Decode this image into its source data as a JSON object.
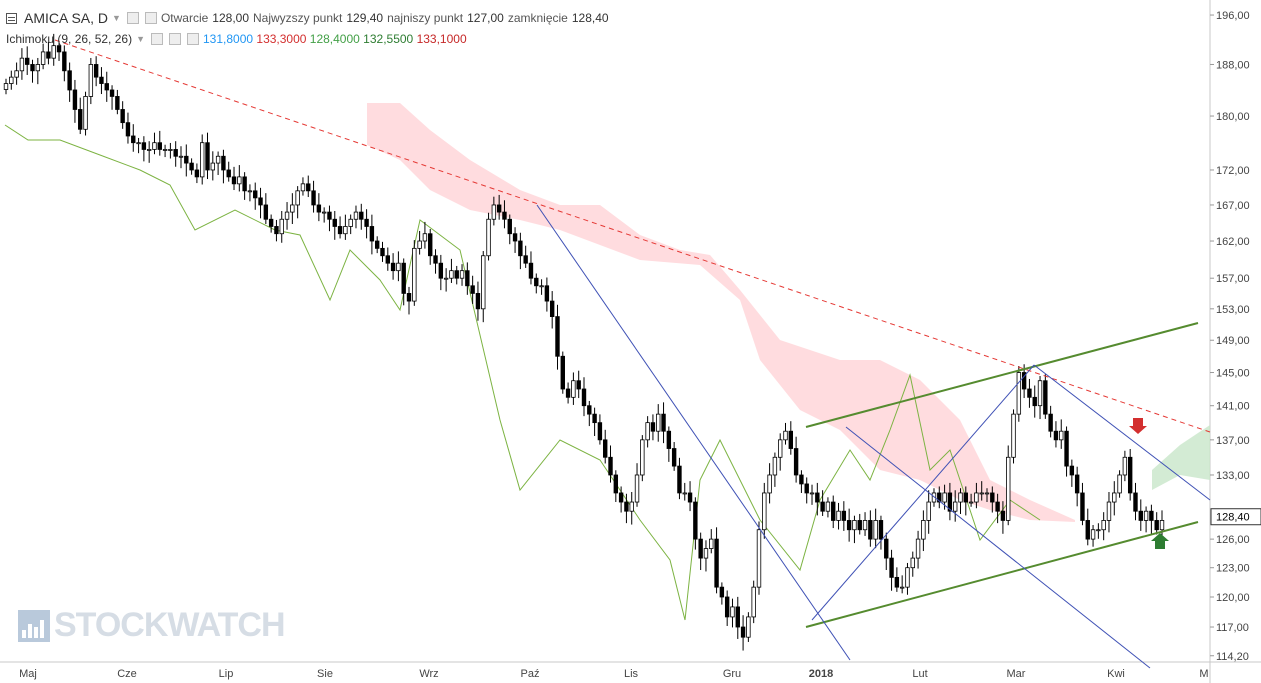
{
  "legend": {
    "symbol": "AMICA SA, D",
    "open_label": "Otwarcie",
    "open": "128,00",
    "high_label": "Najwyzszy punkt",
    "high": "129,40",
    "low_label": "najniszy punkt",
    "low": "127,00",
    "close_label": "zamknięcie",
    "close": "128,40",
    "indicator": "Ichimoku (9, 26, 52, 26)",
    "ind_values": [
      {
        "value": "131,8000",
        "color": "#2196f3"
      },
      {
        "value": "133,3000",
        "color": "#d32f2f"
      },
      {
        "value": "128,4000",
        "color": "#43a047"
      },
      {
        "value": "132,5500",
        "color": "#2e7d32"
      },
      {
        "value": "133,1000",
        "color": "#c62828"
      }
    ]
  },
  "watermark": "STOCKWATCH",
  "chart_data": {
    "type": "candlestick",
    "y_scale": "log",
    "ylim": [
      113.6,
      198.5
    ],
    "y_ticks": [
      "196,00",
      "188,00",
      "180,00",
      "172,00",
      "167,00",
      "162,00",
      "157,00",
      "153,00",
      "149,00",
      "145,00",
      "141,00",
      "137,00",
      "133,00",
      "128,40",
      "126,00",
      "123,00",
      "120,00",
      "117,00",
      "114,20"
    ],
    "last_price": "128,40",
    "x_ticks": [
      "Maj",
      "Cze",
      "Lip",
      "Sie",
      "Wrz",
      "Paź",
      "Lis",
      "Gru",
      "2018",
      "Lut",
      "Mar",
      "Kwi",
      "M"
    ],
    "colors": {
      "up": "#ffffff",
      "down": "#000000",
      "lagging": "#7cb342",
      "cloud_bear": "#ffcdd2",
      "cloud_bull": "#c8e6c9",
      "downtrend": "#e53935",
      "channel": "#558b2f",
      "blue_lines": "#3f51b5"
    },
    "candles_close": [
      185,
      186,
      187,
      189,
      188,
      187,
      188,
      190,
      189,
      191,
      190,
      187,
      184,
      181,
      178,
      183,
      188,
      186,
      185,
      184,
      183,
      181,
      179,
      177,
      176,
      176,
      175,
      175,
      176,
      175,
      175,
      175,
      174,
      174,
      173,
      172,
      171,
      176,
      172,
      173,
      174,
      172,
      171,
      170,
      171,
      169,
      169,
      168,
      167,
      165,
      164,
      163,
      165,
      166,
      167,
      169,
      170,
      169,
      167,
      166,
      166,
      165,
      164,
      163,
      164,
      165,
      166,
      165,
      164,
      162,
      161,
      160,
      159,
      158,
      159,
      155,
      154,
      161,
      162,
      163,
      160,
      159,
      157,
      157,
      158,
      157,
      158,
      156,
      155,
      153,
      160,
      165,
      167,
      166,
      165,
      163,
      162,
      160,
      159,
      157,
      156,
      156,
      154,
      152,
      147,
      143,
      142,
      144,
      143,
      141,
      140,
      139,
      137,
      135,
      133,
      131,
      130,
      129,
      130,
      133,
      137,
      139,
      138,
      140,
      138,
      136,
      134,
      131,
      131,
      130,
      126,
      124,
      125,
      126,
      121,
      120,
      118,
      119,
      117,
      116,
      118,
      121,
      127,
      131,
      133,
      135,
      137,
      138,
      136,
      133,
      132,
      131,
      131,
      130,
      129,
      130,
      128,
      129,
      128,
      127,
      128,
      127,
      128,
      126,
      128,
      126,
      124,
      122,
      121,
      121,
      123,
      124,
      126,
      128,
      130,
      131,
      130,
      131,
      129,
      130,
      131,
      130,
      130,
      131,
      131,
      131,
      130,
      129,
      128,
      135,
      140,
      145,
      143,
      142,
      141,
      144,
      140,
      138,
      137,
      138,
      134,
      133,
      131,
      128,
      126,
      127,
      127,
      128,
      130,
      131,
      133,
      135,
      131,
      129,
      128,
      129,
      128,
      127,
      128
    ],
    "lagging_points": [
      [
        5,
        125
      ],
      [
        28,
        140
      ],
      [
        60,
        140
      ],
      [
        100,
        155
      ],
      [
        140,
        170
      ],
      [
        170,
        185
      ],
      [
        195,
        230
      ],
      [
        235,
        210
      ],
      [
        275,
        230
      ],
      [
        300,
        235
      ],
      [
        330,
        300
      ],
      [
        350,
        250
      ],
      [
        380,
        280
      ],
      [
        400,
        310
      ],
      [
        420,
        220
      ],
      [
        460,
        250
      ],
      [
        500,
        420
      ],
      [
        520,
        490
      ],
      [
        560,
        440
      ],
      [
        600,
        460
      ],
      [
        640,
        520
      ],
      [
        670,
        560
      ],
      [
        685,
        620
      ],
      [
        700,
        480
      ],
      [
        720,
        440
      ],
      [
        760,
        520
      ],
      [
        800,
        570
      ],
      [
        820,
        500
      ],
      [
        850,
        450
      ],
      [
        870,
        480
      ],
      [
        890,
        430
      ],
      [
        910,
        375
      ],
      [
        930,
        470
      ],
      [
        950,
        450
      ],
      [
        980,
        540
      ],
      [
        1010,
        500
      ],
      [
        1040,
        520
      ]
    ],
    "cloud_upper": [
      [
        367,
        103
      ],
      [
        400,
        103
      ],
      [
        430,
        130
      ],
      [
        470,
        160
      ],
      [
        520,
        190
      ],
      [
        560,
        205
      ],
      [
        600,
        205
      ],
      [
        640,
        235
      ],
      [
        680,
        250
      ],
      [
        710,
        255
      ],
      [
        740,
        290
      ],
      [
        780,
        340
      ],
      [
        810,
        350
      ],
      [
        840,
        360
      ],
      [
        880,
        360
      ],
      [
        920,
        380
      ],
      [
        960,
        420
      ],
      [
        990,
        480
      ],
      [
        1030,
        500
      ],
      [
        1075,
        520
      ]
    ],
    "cloud_lower": [
      [
        367,
        145
      ],
      [
        400,
        160
      ],
      [
        430,
        190
      ],
      [
        470,
        210
      ],
      [
        520,
        220
      ],
      [
        560,
        230
      ],
      [
        600,
        245
      ],
      [
        640,
        260
      ],
      [
        700,
        265
      ],
      [
        740,
        300
      ],
      [
        760,
        360
      ],
      [
        800,
        410
      ],
      [
        840,
        430
      ],
      [
        880,
        470
      ],
      [
        920,
        480
      ],
      [
        960,
        500
      ],
      [
        990,
        510
      ],
      [
        1030,
        520
      ],
      [
        1075,
        522
      ]
    ],
    "cloud_bull_poly": [
      [
        1152,
        470
      ],
      [
        1180,
        445
      ],
      [
        1210,
        425
      ],
      [
        1210,
        480
      ],
      [
        1180,
        475
      ],
      [
        1152,
        490
      ]
    ],
    "downtrend_line": [
      [
        55,
        40
      ],
      [
        1210,
        432
      ]
    ],
    "channel_upper": [
      [
        806,
        427
      ],
      [
        1198,
        323
      ]
    ],
    "channel_lower": [
      [
        806,
        627
      ],
      [
        1198,
        522
      ]
    ],
    "blue_lines": [
      [
        [
          537,
          205
        ],
        [
          850,
          660
        ]
      ],
      [
        [
          812,
          620
        ],
        [
          1034,
          365
        ]
      ],
      [
        [
          1034,
          365
        ],
        [
          1210,
          500
        ]
      ],
      [
        [
          846,
          427
        ],
        [
          1150,
          668
        ]
      ]
    ],
    "arrows": [
      {
        "direction": "down",
        "color": "#d32f2f"
      },
      {
        "direction": "up",
        "color": "#2e7d32"
      }
    ]
  }
}
